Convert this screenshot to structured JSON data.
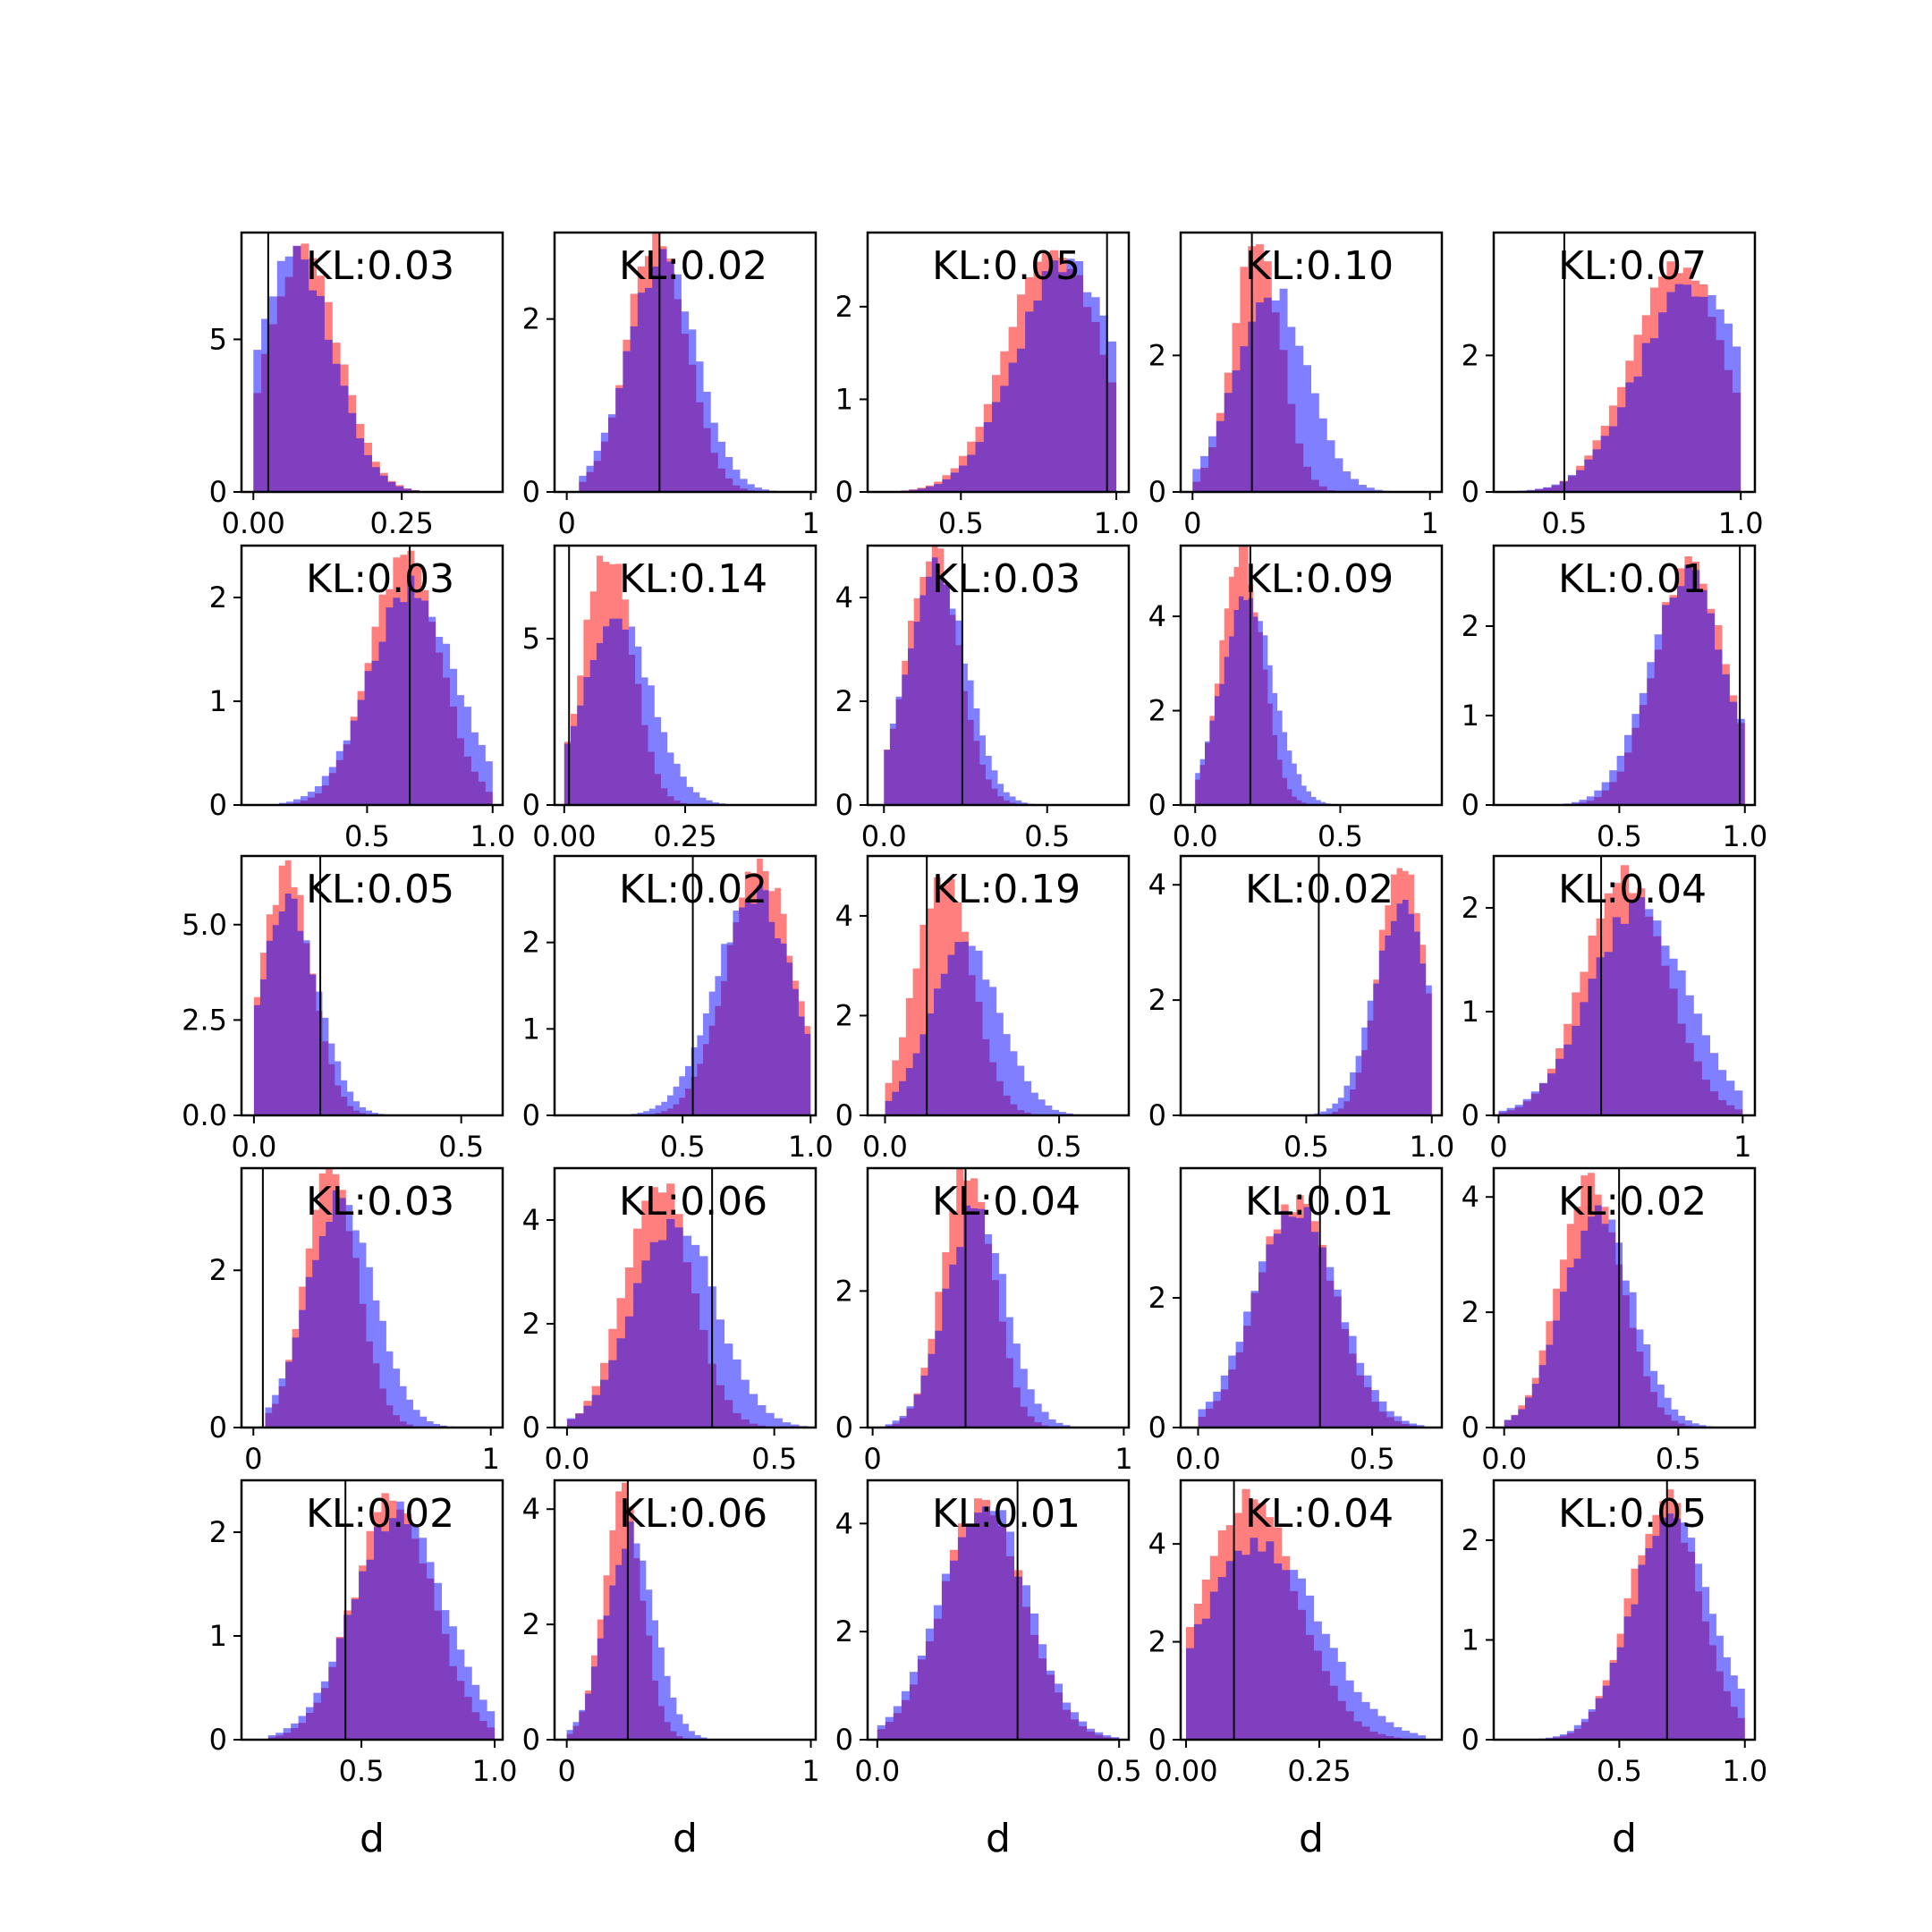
{
  "chart_data": {
    "type": "histogram-grid",
    "rows": 5,
    "cols": 5,
    "colors": {
      "series_a": "#ff0000",
      "series_b": "#0000ff",
      "series_alpha": 0.5,
      "marker_line": "#000000"
    },
    "xlabel": "d",
    "panels": [
      {
        "kl": "KL:0.03",
        "xlim": [
          -0.02,
          0.42
        ],
        "ylim": [
          0,
          8.5
        ],
        "xticks": [
          0,
          0.25
        ],
        "xtick_labels": [
          "0.00",
          "0.25"
        ],
        "yticks": [
          0,
          5
        ],
        "ytick_labels": [
          "0",
          "5"
        ],
        "line_x": 0.025,
        "a": {
          "mean": 0.085,
          "sd": 0.06,
          "min": 0.0,
          "max": 0.4,
          "peak": 7.9
        },
        "b": {
          "mean": 0.07,
          "sd": 0.065,
          "min": 0.0,
          "max": 0.4,
          "peak": 7.7
        }
      },
      {
        "kl": "KL:0.02",
        "xlim": [
          -0.05,
          1.02
        ],
        "ylim": [
          0,
          3.0
        ],
        "xticks": [
          0,
          1
        ],
        "xtick_labels": [
          "0",
          "1"
        ],
        "yticks": [
          0,
          2
        ],
        "ytick_labels": [
          "0",
          "2"
        ],
        "line_x": 0.38,
        "a": {
          "mean": 0.37,
          "sd": 0.12,
          "min": 0.05,
          "max": 0.95,
          "peak": 3.0
        },
        "b": {
          "mean": 0.39,
          "sd": 0.14,
          "min": 0.05,
          "max": 0.95,
          "peak": 2.7
        }
      },
      {
        "kl": "KL:0.05",
        "xlim": [
          0.2,
          1.04
        ],
        "ylim": [
          0,
          2.8
        ],
        "xticks": [
          0.5,
          1.0
        ],
        "xtick_labels": [
          "0.5",
          "1.0"
        ],
        "yticks": [
          0,
          1,
          2
        ],
        "ytick_labels": [
          "0",
          "1",
          "2"
        ],
        "line_x": 0.97,
        "a": {
          "mean": 0.8,
          "sd": 0.15,
          "min": 0.2,
          "max": 1.0,
          "peak": 2.6
        },
        "b": {
          "mean": 0.84,
          "sd": 0.16,
          "min": 0.2,
          "max": 1.0,
          "peak": 2.5
        }
      },
      {
        "kl": "KL:0.10",
        "xlim": [
          -0.05,
          1.05
        ],
        "ylim": [
          0,
          3.8
        ],
        "xticks": [
          0,
          1
        ],
        "xtick_labels": [
          "0",
          "1"
        ],
        "yticks": [
          0,
          2
        ],
        "ytick_labels": [
          "0",
          "2"
        ],
        "line_x": 0.25,
        "a": {
          "mean": 0.27,
          "sd": 0.1,
          "min": 0.0,
          "max": 1.0,
          "peak": 3.8
        },
        "b": {
          "mean": 0.33,
          "sd": 0.15,
          "min": 0.0,
          "max": 1.0,
          "peak": 3.0
        }
      },
      {
        "kl": "KL:0.07",
        "xlim": [
          0.3,
          1.04
        ],
        "ylim": [
          0,
          3.8
        ],
        "xticks": [
          0.5,
          1.0
        ],
        "xtick_labels": [
          "0.5",
          "1.0"
        ],
        "yticks": [
          0,
          2
        ],
        "ytick_labels": [
          "0",
          "2"
        ],
        "line_x": 0.5,
        "a": {
          "mean": 0.82,
          "sd": 0.13,
          "min": 0.3,
          "max": 1.0,
          "peak": 3.4
        },
        "b": {
          "mean": 0.86,
          "sd": 0.15,
          "min": 0.3,
          "max": 1.0,
          "peak": 3.0
        }
      },
      {
        "kl": "KL:0.03",
        "xlim": [
          0.0,
          1.04
        ],
        "ylim": [
          0,
          2.5
        ],
        "xticks": [
          0.5,
          1.0
        ],
        "xtick_labels": [
          "0.5",
          "1.0"
        ],
        "yticks": [
          0,
          1,
          2
        ],
        "ytick_labels": [
          "0",
          "1",
          "2"
        ],
        "line_x": 0.67,
        "a": {
          "mean": 0.65,
          "sd": 0.14,
          "min": 0.15,
          "max": 1.0,
          "peak": 2.4
        },
        "b": {
          "mean": 0.68,
          "sd": 0.17,
          "min": 0.15,
          "max": 1.0,
          "peak": 2.1
        }
      },
      {
        "kl": "KL:0.14",
        "xlim": [
          -0.02,
          0.52
        ],
        "ylim": [
          0,
          7.8
        ],
        "xticks": [
          0,
          0.25
        ],
        "xtick_labels": [
          "0.00",
          "0.25"
        ],
        "yticks": [
          0,
          5
        ],
        "ytick_labels": [
          "0",
          "5"
        ],
        "line_x": 0.01,
        "a": {
          "mean": 0.09,
          "sd": 0.05,
          "min": 0.0,
          "max": 0.4,
          "peak": 7.7
        },
        "b": {
          "mean": 0.11,
          "sd": 0.07,
          "min": 0.0,
          "max": 0.4,
          "peak": 5.6
        }
      },
      {
        "kl": "KL:0.03",
        "xlim": [
          -0.05,
          0.75
        ],
        "ylim": [
          0,
          5.0
        ],
        "xticks": [
          0,
          0.5
        ],
        "xtick_labels": [
          "0.0",
          "0.5"
        ],
        "yticks": [
          0,
          2,
          4
        ],
        "ytick_labels": [
          "0",
          "2",
          "4"
        ],
        "line_x": 0.24,
        "a": {
          "mean": 0.15,
          "sd": 0.08,
          "min": 0.0,
          "max": 0.55,
          "peak": 4.9
        },
        "b": {
          "mean": 0.16,
          "sd": 0.09,
          "min": 0.0,
          "max": 0.55,
          "peak": 4.6
        }
      },
      {
        "kl": "KL:0.09",
        "xlim": [
          -0.05,
          0.85
        ],
        "ylim": [
          0,
          5.5
        ],
        "xticks": [
          0,
          0.5
        ],
        "xtick_labels": [
          "0.0",
          "0.5"
        ],
        "yticks": [
          0,
          2,
          4
        ],
        "ytick_labels": [
          "0",
          "2",
          "4"
        ],
        "line_x": 0.19,
        "a": {
          "mean": 0.16,
          "sd": 0.07,
          "min": 0.0,
          "max": 0.5,
          "peak": 5.5
        },
        "b": {
          "mean": 0.18,
          "sd": 0.09,
          "min": 0.0,
          "max": 0.5,
          "peak": 4.4
        }
      },
      {
        "kl": "KL:0.01",
        "xlim": [
          0.0,
          1.04
        ],
        "ylim": [
          0,
          2.9
        ],
        "xticks": [
          0.5,
          1.0
        ],
        "xtick_labels": [
          "0.5",
          "1.0"
        ],
        "yticks": [
          0,
          1,
          2
        ],
        "ytick_labels": [
          "0",
          "1",
          "2"
        ],
        "line_x": 0.98,
        "a": {
          "mean": 0.78,
          "sd": 0.14,
          "min": 0.1,
          "max": 1.0,
          "peak": 2.7
        },
        "b": {
          "mean": 0.77,
          "sd": 0.15,
          "min": 0.1,
          "max": 1.0,
          "peak": 2.6
        }
      },
      {
        "kl": "KL:0.05",
        "xlim": [
          -0.03,
          0.6
        ],
        "ylim": [
          0,
          6.8
        ],
        "xticks": [
          0,
          0.5
        ],
        "xtick_labels": [
          "0.0",
          "0.5"
        ],
        "yticks": [
          0,
          2.5,
          5.0
        ],
        "ytick_labels": [
          "0.0",
          "2.5",
          "5.0"
        ],
        "line_x": 0.16,
        "a": {
          "mean": 0.08,
          "sd": 0.06,
          "min": 0.0,
          "max": 0.45,
          "peak": 6.4
        },
        "b": {
          "mean": 0.085,
          "sd": 0.07,
          "min": 0.0,
          "max": 0.45,
          "peak": 5.5
        }
      },
      {
        "kl": "KL:0.02",
        "xlim": [
          0.0,
          1.02
        ],
        "ylim": [
          0,
          3.0
        ],
        "xticks": [
          0.5,
          1.0
        ],
        "xtick_labels": [
          "0.5",
          "1.0"
        ],
        "yticks": [
          0,
          1,
          2
        ],
        "ytick_labels": [
          "0",
          "1",
          "2"
        ],
        "line_x": 0.54,
        "a": {
          "mean": 0.8,
          "sd": 0.13,
          "min": 0.3,
          "max": 1.0,
          "peak": 2.9
        },
        "b": {
          "mean": 0.78,
          "sd": 0.15,
          "min": 0.3,
          "max": 1.0,
          "peak": 2.6
        }
      },
      {
        "kl": "KL:0.19",
        "xlim": [
          -0.05,
          0.7
        ],
        "ylim": [
          0,
          5.2
        ],
        "xticks": [
          0,
          0.5
        ],
        "xtick_labels": [
          "0.0",
          "0.5"
        ],
        "yticks": [
          0,
          2,
          4
        ],
        "ytick_labels": [
          "0",
          "2",
          "4"
        ],
        "line_x": 0.12,
        "a": {
          "mean": 0.17,
          "sd": 0.08,
          "min": 0.0,
          "max": 0.6,
          "peak": 4.9
        },
        "b": {
          "mean": 0.23,
          "sd": 0.1,
          "min": 0.0,
          "max": 0.6,
          "peak": 3.4
        }
      },
      {
        "kl": "KL:0.02",
        "xlim": [
          0.0,
          1.04
        ],
        "ylim": [
          0,
          4.5
        ],
        "xticks": [
          0.5,
          1.0
        ],
        "xtick_labels": [
          "0.5",
          "1.0"
        ],
        "yticks": [
          0,
          2,
          4
        ],
        "ytick_labels": [
          "0",
          "2",
          "4"
        ],
        "line_x": 0.55,
        "a": {
          "mean": 0.88,
          "sd": 0.09,
          "min": 0.3,
          "max": 1.0,
          "peak": 4.5
        },
        "b": {
          "mean": 0.88,
          "sd": 0.11,
          "min": 0.3,
          "max": 1.0,
          "peak": 3.6
        }
      },
      {
        "kl": "KL:0.04",
        "xlim": [
          -0.02,
          1.05
        ],
        "ylim": [
          0,
          2.5
        ],
        "xticks": [
          0,
          1
        ],
        "xtick_labels": [
          "0",
          "1"
        ],
        "yticks": [
          0,
          1,
          2
        ],
        "ytick_labels": [
          "0",
          "1",
          "2"
        ],
        "line_x": 0.42,
        "a": {
          "mean": 0.52,
          "sd": 0.17,
          "min": 0.0,
          "max": 1.0,
          "peak": 2.3
        },
        "b": {
          "mean": 0.57,
          "sd": 0.2,
          "min": 0.0,
          "max": 1.0,
          "peak": 2.0
        }
      },
      {
        "kl": "KL:0.03",
        "xlim": [
          -0.05,
          1.05
        ],
        "ylim": [
          0,
          3.3
        ],
        "xticks": [
          0,
          1
        ],
        "xtick_labels": [
          "0",
          "1"
        ],
        "yticks": [
          0,
          2
        ],
        "ytick_labels": [
          "0",
          "2"
        ],
        "line_x": 0.04,
        "a": {
          "mean": 0.33,
          "sd": 0.11,
          "min": 0.05,
          "max": 0.9,
          "peak": 3.3
        },
        "b": {
          "mean": 0.37,
          "sd": 0.14,
          "min": 0.05,
          "max": 0.9,
          "peak": 2.9
        }
      },
      {
        "kl": "KL:0.06",
        "xlim": [
          -0.03,
          0.6
        ],
        "ylim": [
          0,
          5.0
        ],
        "xticks": [
          0,
          0.5
        ],
        "xtick_labels": [
          "0.0",
          "0.5"
        ],
        "yticks": [
          0,
          2,
          4
        ],
        "ytick_labels": [
          "0",
          "2",
          "4"
        ],
        "line_x": 0.35,
        "a": {
          "mean": 0.22,
          "sd": 0.08,
          "min": 0.0,
          "max": 0.6,
          "peak": 4.8
        },
        "b": {
          "mean": 0.26,
          "sd": 0.1,
          "min": 0.0,
          "max": 0.6,
          "peak": 4.0
        }
      },
      {
        "kl": "KL:0.04",
        "xlim": [
          -0.02,
          1.02
        ],
        "ylim": [
          0,
          3.8
        ],
        "xticks": [
          0,
          1
        ],
        "xtick_labels": [
          "0",
          "1"
        ],
        "yticks": [
          0,
          2
        ],
        "ytick_labels": [
          "0",
          "2"
        ],
        "line_x": 0.37,
        "a": {
          "mean": 0.38,
          "sd": 0.1,
          "min": 0.05,
          "max": 0.9,
          "peak": 3.8
        },
        "b": {
          "mean": 0.41,
          "sd": 0.12,
          "min": 0.05,
          "max": 0.9,
          "peak": 3.2
        }
      },
      {
        "kl": "KL:0.01",
        "xlim": [
          -0.05,
          0.7
        ],
        "ylim": [
          0,
          4.0
        ],
        "xticks": [
          0,
          0.5
        ],
        "xtick_labels": [
          "0.0",
          "0.5"
        ],
        "yticks": [
          0,
          2
        ],
        "ytick_labels": [
          "0",
          "2"
        ],
        "line_x": 0.35,
        "a": {
          "mean": 0.28,
          "sd": 0.11,
          "min": 0.0,
          "max": 0.65,
          "peak": 3.5
        },
        "b": {
          "mean": 0.28,
          "sd": 0.12,
          "min": 0.0,
          "max": 0.65,
          "peak": 3.4
        }
      },
      {
        "kl": "KL:0.02",
        "xlim": [
          -0.03,
          0.72
        ],
        "ylim": [
          0,
          4.5
        ],
        "xticks": [
          0,
          0.5
        ],
        "xtick_labels": [
          "0.0",
          "0.5"
        ],
        "yticks": [
          0,
          2,
          4
        ],
        "ytick_labels": [
          "0",
          "2",
          "4"
        ],
        "line_x": 0.33,
        "a": {
          "mean": 0.25,
          "sd": 0.09,
          "min": 0.0,
          "max": 0.6,
          "peak": 4.3
        },
        "b": {
          "mean": 0.27,
          "sd": 0.1,
          "min": 0.0,
          "max": 0.6,
          "peak": 3.7
        }
      },
      {
        "kl": "KL:0.02",
        "xlim": [
          0.05,
          1.03
        ],
        "ylim": [
          0,
          2.5
        ],
        "xticks": [
          0.5,
          1.0
        ],
        "xtick_labels": [
          "0.5",
          "1.0"
        ],
        "yticks": [
          0,
          1,
          2
        ],
        "ytick_labels": [
          "0",
          "1",
          "2"
        ],
        "line_x": 0.44,
        "a": {
          "mean": 0.62,
          "sd": 0.15,
          "min": 0.15,
          "max": 1.0,
          "peak": 2.3
        },
        "b": {
          "mean": 0.64,
          "sd": 0.17,
          "min": 0.15,
          "max": 1.0,
          "peak": 2.2
        }
      },
      {
        "kl": "KL:0.06",
        "xlim": [
          -0.05,
          1.02
        ],
        "ylim": [
          0,
          4.5
        ],
        "xticks": [
          0,
          1
        ],
        "xtick_labels": [
          "0",
          "1"
        ],
        "yticks": [
          0,
          2,
          4
        ],
        "ytick_labels": [
          "0",
          "2",
          "4"
        ],
        "line_x": 0.25,
        "a": {
          "mean": 0.23,
          "sd": 0.08,
          "min": 0.0,
          "max": 0.75,
          "peak": 4.3
        },
        "b": {
          "mean": 0.26,
          "sd": 0.1,
          "min": 0.0,
          "max": 0.75,
          "peak": 3.6
        }
      },
      {
        "kl": "KL:0.01",
        "xlim": [
          -0.02,
          0.52
        ],
        "ylim": [
          0,
          4.8
        ],
        "xticks": [
          0,
          0.5
        ],
        "xtick_labels": [
          "0.0",
          "0.5"
        ],
        "yticks": [
          0,
          2,
          4
        ],
        "ytick_labels": [
          "0",
          "2",
          "4"
        ],
        "line_x": 0.29,
        "a": {
          "mean": 0.22,
          "sd": 0.085,
          "min": 0.0,
          "max": 0.5,
          "peak": 4.4
        },
        "b": {
          "mean": 0.22,
          "sd": 0.09,
          "min": 0.0,
          "max": 0.5,
          "peak": 4.4
        }
      },
      {
        "kl": "KL:0.04",
        "xlim": [
          -0.01,
          0.48
        ],
        "ylim": [
          0,
          5.3
        ],
        "xticks": [
          0,
          0.25
        ],
        "xtick_labels": [
          "0.00",
          "0.25"
        ],
        "yticks": [
          0,
          2,
          4
        ],
        "ytick_labels": [
          "0",
          "2",
          "4"
        ],
        "line_x": 0.09,
        "a": {
          "mean": 0.12,
          "sd": 0.09,
          "min": 0.0,
          "max": 0.45,
          "peak": 4.9
        },
        "b": {
          "mean": 0.14,
          "sd": 0.11,
          "min": 0.0,
          "max": 0.45,
          "peak": 4.0
        }
      },
      {
        "kl": "KL:0.05",
        "xlim": [
          0.0,
          1.04
        ],
        "ylim": [
          0,
          2.6
        ],
        "xticks": [
          0.5,
          1.0
        ],
        "xtick_labels": [
          "0.5",
          "1.0"
        ],
        "yticks": [
          0,
          1,
          2
        ],
        "ytick_labels": [
          "0",
          "1",
          "2"
        ],
        "line_x": 0.69,
        "a": {
          "mean": 0.68,
          "sd": 0.14,
          "min": 0.15,
          "max": 1.0,
          "peak": 2.4
        },
        "b": {
          "mean": 0.71,
          "sd": 0.16,
          "min": 0.15,
          "max": 1.0,
          "peak": 2.2
        }
      }
    ]
  }
}
